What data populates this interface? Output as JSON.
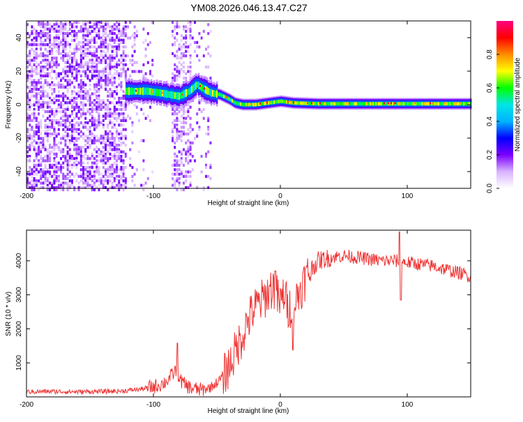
{
  "title": "YM08.2026.046.13.47.C27",
  "chart_data": [
    {
      "type": "heatmap",
      "title": "YM08.2026.046.13.47.C27",
      "xlabel": "Height of straight line (km)",
      "ylabel": "Frequency (Hz)",
      "xlim": [
        -200,
        150
      ],
      "ylim": [
        -50,
        50
      ],
      "xticks": [
        -200,
        -100,
        0,
        100
      ],
      "yticks": [
        -40,
        -20,
        0,
        20,
        40
      ],
      "ridge": {
        "x": [
          -122,
          -115,
          -105,
          -95,
          -88,
          -80,
          -72,
          -66,
          -62,
          -55,
          -48,
          -40,
          -36,
          -30,
          -20,
          -10,
          0,
          10,
          30,
          60,
          100,
          150
        ],
        "y": [
          8,
          8,
          8,
          7,
          6,
          5,
          8,
          12,
          10,
          7,
          6,
          3,
          1,
          0,
          0,
          1,
          2,
          1,
          0.5,
          0.5,
          0.5,
          0.5
        ]
      },
      "colorbar": {
        "label": "Normalized spectral amplitude",
        "range": [
          0.0,
          1.0
        ],
        "ticks": [
          0.0,
          0.2,
          0.4,
          0.6,
          0.8
        ],
        "colors": [
          "#ffffff",
          "#d9b3ff",
          "#7a00ff",
          "#0000ff",
          "#00b4ff",
          "#00e5e5",
          "#00ff00",
          "#ffff00",
          "#ff8c00",
          "#ff0000",
          "#ff0080"
        ]
      }
    },
    {
      "type": "line",
      "xlabel": "Height of straight line (km)",
      "ylabel": "SNR (10 * v/v)",
      "xlim": [
        -200,
        150
      ],
      "ylim": [
        0,
        4900
      ],
      "xticks": [
        -200,
        -100,
        0,
        100
      ],
      "yticks": [
        1000,
        2000,
        3000,
        4000
      ],
      "series": [
        {
          "name": "SNR",
          "color": "#ee3333",
          "x": [
            -200,
            -180,
            -160,
            -140,
            -125,
            -110,
            -100,
            -95,
            -90,
            -85,
            -82,
            -78,
            -75,
            -70,
            -62,
            -55,
            -48,
            -42,
            -38,
            -34,
            -30,
            -26,
            -22,
            -18,
            -15,
            -12,
            -9,
            -6,
            -3,
            0,
            3,
            6,
            9,
            12,
            15,
            20,
            25,
            30,
            35,
            40,
            50,
            60,
            70,
            80,
            90,
            100,
            110,
            120,
            130,
            140,
            150
          ],
          "y": [
            150,
            160,
            150,
            160,
            170,
            230,
            300,
            350,
            450,
            650,
            800,
            450,
            350,
            250,
            200,
            280,
            480,
            800,
            1100,
            1450,
            1800,
            2200,
            2500,
            2700,
            2800,
            2950,
            3100,
            3250,
            3000,
            2700,
            3100,
            2600,
            2700,
            2800,
            3100,
            3500,
            3800,
            4000,
            4050,
            4100,
            4150,
            4100,
            4050,
            4000,
            4000,
            3950,
            3900,
            3850,
            3750,
            3650,
            3550
          ]
        }
      ],
      "spikes": [
        {
          "x": -81,
          "y": 1580
        },
        {
          "x": 94,
          "y": 4850
        },
        {
          "x": 95,
          "y": 2850
        },
        {
          "x": -4,
          "y": 3700
        },
        {
          "x": 10,
          "y": 1380
        }
      ]
    }
  ]
}
